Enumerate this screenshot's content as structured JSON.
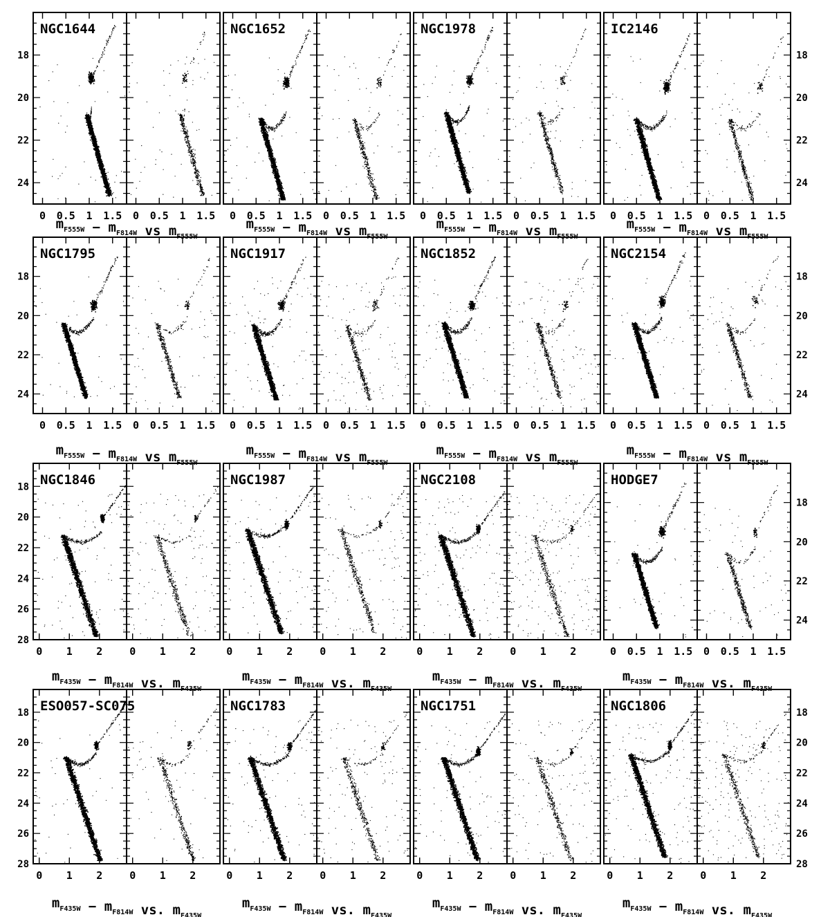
{
  "figure": {
    "type": "color-magnitude diagram grid",
    "row_captions": [
      {
        "parts": [
          {
            "t": "m",
            "s": "F555W"
          },
          {
            "t": " − m",
            "s": "F814W"
          },
          {
            "t": " vs m",
            "s": "F555W"
          }
        ]
      },
      {
        "parts": [
          {
            "t": "m",
            "s": "F555W"
          },
          {
            "t": " − m",
            "s": "F814W"
          },
          {
            "t": " vs m",
            "s": "F555W"
          }
        ]
      },
      {
        "parts": [
          {
            "t": "m",
            "s": "F435W"
          },
          {
            "t": " − m",
            "s": "F814W"
          },
          {
            "t": " vs. m",
            "s": "F435W"
          }
        ]
      },
      {
        "parts": [
          {
            "t": "m",
            "s": "F435W"
          },
          {
            "t": " − m",
            "s": "F814W"
          },
          {
            "t": " vs. m",
            "s": "F435W"
          }
        ]
      }
    ]
  },
  "chart_data": [
    {
      "type": "scatter",
      "cluster": "NGC1644",
      "xlabel": "mF555W - mF814W",
      "ylabel": "mF555W",
      "xlim": [
        -0.2,
        1.8
      ],
      "ylim": [
        25,
        16
      ],
      "x_ticks": [
        "0",
        "0.5",
        "1",
        "1.5"
      ],
      "y_ticks": [
        "18",
        "20",
        "22",
        "24"
      ],
      "to_x": 0.95,
      "to_y": 20.8,
      "rgb_x": 1.05,
      "rgb_y": 19.1,
      "field_density": "low"
    },
    {
      "type": "scatter",
      "cluster": "NGC1652",
      "xlabel": "mF555W - mF814W",
      "ylabel": "mF555W",
      "xlim": [
        -0.2,
        1.8
      ],
      "ylim": [
        25,
        16
      ],
      "x_ticks": [
        "0",
        "0.5",
        "1",
        "1.5"
      ],
      "y_ticks": [
        "18",
        "20",
        "22",
        "24"
      ],
      "to_x": 0.6,
      "to_y": 21.0,
      "rgb_x": 1.15,
      "rgb_y": 19.3,
      "field_density": "low"
    },
    {
      "type": "scatter",
      "cluster": "NGC1978",
      "xlabel": "mF555W - mF814W",
      "ylabel": "mF555W",
      "xlim": [
        -0.2,
        1.8
      ],
      "ylim": [
        25,
        16
      ],
      "x_ticks": [
        "0",
        "0.5",
        "1",
        "1.5"
      ],
      "y_ticks": [
        "18",
        "20",
        "22",
        "24"
      ],
      "to_x": 0.5,
      "to_y": 20.7,
      "rgb_x": 1.0,
      "rgb_y": 19.2,
      "field_density": "low"
    },
    {
      "type": "scatter",
      "cluster": "IC2146",
      "xlabel": "mF555W - mF814W",
      "ylabel": "mF555W",
      "xlim": [
        -0.2,
        1.8
      ],
      "ylim": [
        25,
        16
      ],
      "x_ticks": [
        "0",
        "0.5",
        "1",
        "1.5"
      ],
      "y_ticks": [
        "18",
        "20",
        "22",
        "24"
      ],
      "to_x": 0.5,
      "to_y": 21.0,
      "rgb_x": 1.15,
      "rgb_y": 19.5,
      "field_density": "low"
    },
    {
      "type": "scatter",
      "cluster": "NGC1795",
      "xlabel": "mF555W - mF814W",
      "ylabel": "mF555W",
      "xlim": [
        -0.2,
        1.8
      ],
      "ylim": [
        25,
        16
      ],
      "x_ticks": [
        "0",
        "0.5",
        "1",
        "1.5"
      ],
      "y_ticks": [
        "18",
        "20",
        "22",
        "24"
      ],
      "to_x": 0.45,
      "to_y": 20.4,
      "rgb_x": 1.1,
      "rgb_y": 19.5,
      "field_density": "low"
    },
    {
      "type": "scatter",
      "cluster": "NGC1917",
      "xlabel": "mF555W - mF814W",
      "ylabel": "mF555W",
      "xlim": [
        -0.2,
        1.8
      ],
      "ylim": [
        25,
        16
      ],
      "x_ticks": [
        "0",
        "0.5",
        "1",
        "1.5"
      ],
      "y_ticks": [
        "18",
        "20",
        "22",
        "24"
      ],
      "to_x": 0.45,
      "to_y": 20.5,
      "rgb_x": 1.05,
      "rgb_y": 19.5,
      "field_density": "medium"
    },
    {
      "type": "scatter",
      "cluster": "NGC1852",
      "xlabel": "mF555W - mF814W",
      "ylabel": "mF555W",
      "xlim": [
        -0.2,
        1.8
      ],
      "ylim": [
        25,
        16
      ],
      "x_ticks": [
        "0",
        "0.5",
        "1",
        "1.5"
      ],
      "y_ticks": [
        "18",
        "20",
        "22",
        "24"
      ],
      "to_x": 0.45,
      "to_y": 20.4,
      "rgb_x": 1.05,
      "rgb_y": 19.5,
      "field_density": "medium"
    },
    {
      "type": "scatter",
      "cluster": "NGC2154",
      "xlabel": "mF555W - mF814W",
      "ylabel": "mF555W",
      "xlim": [
        -0.2,
        1.8
      ],
      "ylim": [
        25,
        16
      ],
      "x_ticks": [
        "0",
        "0.5",
        "1",
        "1.5"
      ],
      "y_ticks": [
        "18",
        "20",
        "22",
        "24"
      ],
      "to_x": 0.45,
      "to_y": 20.4,
      "rgb_x": 1.05,
      "rgb_y": 19.3,
      "field_density": "low"
    },
    {
      "type": "scatter",
      "cluster": "NGC1846",
      "xlabel": "mF435W - mF814W",
      "ylabel": "mF435W",
      "xlim": [
        -0.2,
        2.9
      ],
      "ylim": [
        28,
        16.5
      ],
      "x_ticks": [
        "0",
        "1",
        "2"
      ],
      "y_ticks": [
        "18",
        "20",
        "22",
        "24",
        "26",
        "28"
      ],
      "to_x": 0.8,
      "to_y": 21.2,
      "rgb_x": 2.1,
      "rgb_y": 20.1,
      "field_density": "medium"
    },
    {
      "type": "scatter",
      "cluster": "NGC1987",
      "xlabel": "mF435W - mF814W",
      "ylabel": "mF435W",
      "xlim": [
        -0.2,
        2.9
      ],
      "ylim": [
        28,
        16.5
      ],
      "x_ticks": [
        "0",
        "1",
        "2"
      ],
      "y_ticks": [
        "18",
        "20",
        "22",
        "24",
        "26",
        "28"
      ],
      "to_x": 0.6,
      "to_y": 20.8,
      "rgb_x": 1.9,
      "rgb_y": 20.5,
      "field_density": "medium"
    },
    {
      "type": "scatter",
      "cluster": "NGC2108",
      "xlabel": "mF435W - mF814W",
      "ylabel": "mF435W",
      "xlim": [
        -0.2,
        2.9
      ],
      "ylim": [
        28,
        16.5
      ],
      "x_ticks": [
        "0",
        "1",
        "2"
      ],
      "y_ticks": [
        "18",
        "20",
        "22",
        "24",
        "26",
        "28"
      ],
      "to_x": 0.7,
      "to_y": 21.2,
      "rgb_x": 1.95,
      "rgb_y": 20.8,
      "field_density": "high"
    },
    {
      "type": "scatter",
      "cluster": "HODGE7",
      "xlabel": "mF435W - mF814W",
      "ylabel": "mF435W",
      "xlim": [
        -0.2,
        1.8
      ],
      "ylim": [
        25,
        16
      ],
      "x_ticks": [
        "0",
        "0.5",
        "1",
        "1.5"
      ],
      "y_ticks": [
        "18",
        "20",
        "22",
        "24"
      ],
      "to_x": 0.45,
      "to_y": 20.6,
      "rgb_x": 1.05,
      "rgb_y": 19.5,
      "field_density": "low"
    },
    {
      "type": "scatter",
      "cluster": "ESO057-SC075",
      "xlabel": "mF435W - mF814W",
      "ylabel": "mF435W",
      "xlim": [
        -0.2,
        2.9
      ],
      "ylim": [
        28,
        16.5
      ],
      "x_ticks": [
        "0",
        "1",
        "2"
      ],
      "y_ticks": [
        "18",
        "20",
        "22",
        "24",
        "26",
        "28"
      ],
      "to_x": 0.9,
      "to_y": 21.0,
      "rgb_x": 1.9,
      "rgb_y": 20.2,
      "field_density": "low"
    },
    {
      "type": "scatter",
      "cluster": "NGC1783",
      "xlabel": "mF435W - mF814W",
      "ylabel": "mF435W",
      "xlim": [
        -0.2,
        2.9
      ],
      "ylim": [
        28,
        16.5
      ],
      "x_ticks": [
        "0",
        "1",
        "2"
      ],
      "y_ticks": [
        "18",
        "20",
        "22",
        "24",
        "26",
        "28"
      ],
      "to_x": 0.7,
      "to_y": 21.0,
      "rgb_x": 2.0,
      "rgb_y": 20.3,
      "field_density": "medium"
    },
    {
      "type": "scatter",
      "cluster": "NGC1751",
      "xlabel": "mF435W - mF814W",
      "ylabel": "mF435W",
      "xlim": [
        -0.2,
        2.9
      ],
      "ylim": [
        28,
        16.5
      ],
      "x_ticks": [
        "0",
        "1",
        "2"
      ],
      "y_ticks": [
        "18",
        "20",
        "22",
        "24",
        "26",
        "28"
      ],
      "to_x": 0.8,
      "to_y": 21.0,
      "rgb_x": 1.95,
      "rgb_y": 20.6,
      "field_density": "medium"
    },
    {
      "type": "scatter",
      "cluster": "NGC1806",
      "xlabel": "mF435W - mF814W",
      "ylabel": "mF435W",
      "xlim": [
        -0.2,
        2.9
      ],
      "ylim": [
        28,
        16.5
      ],
      "x_ticks": [
        "0",
        "1",
        "2"
      ],
      "y_ticks": [
        "18",
        "20",
        "22",
        "24",
        "26",
        "28"
      ],
      "to_x": 0.7,
      "to_y": 20.8,
      "rgb_x": 2.0,
      "rgb_y": 20.2,
      "field_density": "high"
    }
  ]
}
